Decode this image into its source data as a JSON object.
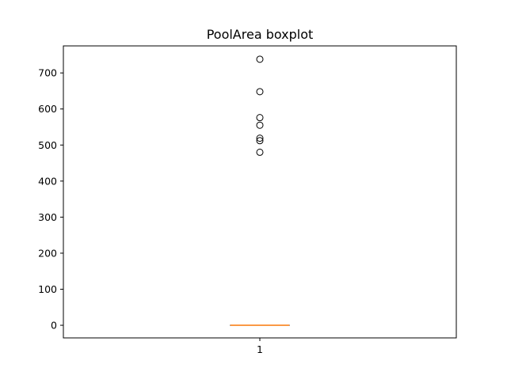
{
  "chart_data": {
    "type": "boxplot",
    "title": "PoolArea boxplot",
    "xlabel": "",
    "ylabel": "",
    "categories": [
      "1"
    ],
    "ylim": [
      -35,
      775
    ],
    "yticks": [
      0,
      100,
      200,
      300,
      400,
      500,
      600,
      700
    ],
    "grid": false,
    "series": [
      {
        "category": "1",
        "min": 0,
        "q1": 0,
        "median": 0,
        "q3": 0,
        "max": 0,
        "outliers": [
          738,
          648,
          576,
          555,
          519,
          512,
          480
        ]
      }
    ],
    "colors": {
      "box": "#000000",
      "median": "#ff7f0e",
      "outlier_edge": "#000000"
    }
  }
}
